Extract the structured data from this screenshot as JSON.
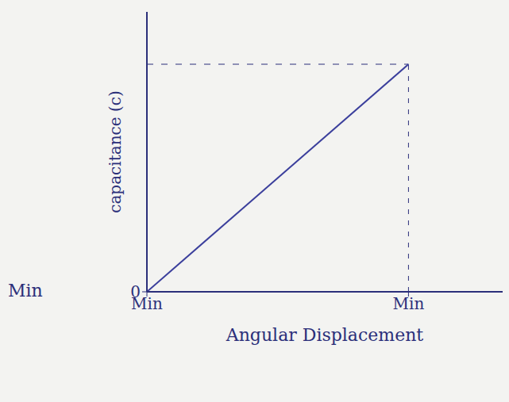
{
  "chart_data": {
    "type": "line",
    "x_label": "Angular Displacement",
    "y_label": "capacitance (c)",
    "x": [
      0,
      1
    ],
    "values": [
      0,
      1
    ],
    "color": "#3b3f9c",
    "xlim": [
      0,
      1.36
    ],
    "ylim": [
      0,
      1.23
    ],
    "xticks": [
      {
        "value": 0,
        "label": "Min"
      },
      {
        "value": 1,
        "label": "Min"
      }
    ],
    "yticks": [
      {
        "value": 0,
        "label": "0"
      }
    ],
    "annotations": [
      "Min"
    ],
    "line_style": "solid",
    "marker": "none",
    "grid": false
  }
}
